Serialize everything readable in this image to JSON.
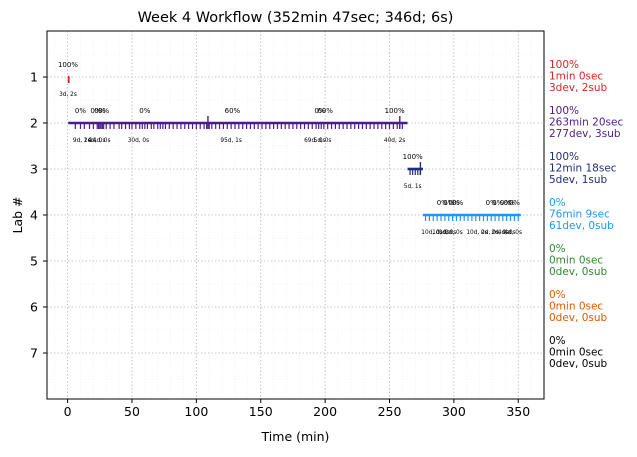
{
  "chart_data": {
    "type": "timeline",
    "title": "Week 4 Workflow (352min 47sec; 346d; 6s)",
    "xlabel": "Time (min)",
    "ylabel": "Lab #",
    "xlim": [
      -16,
      370
    ],
    "ylim": [
      8,
      0
    ],
    "x_ticks": [
      "0",
      "50",
      "100",
      "150",
      "200",
      "250",
      "300",
      "350"
    ],
    "x_tick_values": [
      0,
      50,
      100,
      150,
      200,
      250,
      300,
      350
    ],
    "y_ticks": [
      "1",
      "2",
      "3",
      "4",
      "5",
      "6",
      "7"
    ],
    "y_tick_values": [
      1,
      2,
      3,
      4,
      5,
      6,
      7
    ],
    "grid": true,
    "lanes": [
      {
        "lab": 1,
        "color": "#d62728",
        "start": 0.3,
        "end": 1.3,
        "ticks": [
          0.6,
          0.9,
          1.1
        ],
        "progress": [
          {
            "x": 0.3,
            "label": "100%"
          }
        ],
        "events": [
          {
            "x": 0.3,
            "label": "3d, 2s"
          }
        ],
        "summary": [
          "100%",
          "1min 0sec",
          "3dev, 2sub"
        ]
      },
      {
        "lab": 2,
        "color": "#4b1c8c",
        "start": 0.5,
        "end": 264,
        "ticks": [
          6,
          10,
          13,
          17,
          20,
          23,
          24,
          25,
          26,
          27,
          28,
          30,
          33,
          36,
          40,
          42,
          45,
          48,
          50,
          53,
          56,
          58,
          60,
          62,
          65,
          67,
          70,
          72,
          74,
          76,
          79,
          82,
          85,
          88,
          91,
          94,
          97,
          100,
          103,
          106,
          108,
          110,
          112,
          115,
          118,
          121,
          124,
          127,
          130,
          133,
          136,
          139,
          142,
          145,
          148,
          151,
          154,
          157,
          160,
          163,
          166,
          169,
          172,
          175,
          178,
          181,
          184,
          187,
          190,
          193,
          195,
          197,
          199,
          202,
          205,
          208,
          211,
          214,
          217,
          220,
          223,
          226,
          229,
          232,
          235,
          238,
          241,
          244,
          247,
          250,
          253,
          256,
          258,
          260
        ],
        "major_ticks": [
          109,
          258
        ],
        "progress": [
          {
            "x": 10,
            "label": "0%"
          },
          {
            "x": 22,
            "label": "0%"
          },
          {
            "x": 25,
            "label": "0%"
          },
          {
            "x": 28,
            "label": "0%"
          },
          {
            "x": 60,
            "label": "0%"
          },
          {
            "x": 128,
            "label": "60%"
          },
          {
            "x": 196,
            "label": "0%"
          },
          {
            "x": 200,
            "label": "60%"
          },
          {
            "x": 254,
            "label": "100%"
          }
        ],
        "events": [
          {
            "x": 11,
            "label": "9d, 2s"
          },
          {
            "x": 21,
            "label": "14d, 0s"
          },
          {
            "x": 25,
            "label": "14d, 0s"
          },
          {
            "x": 55,
            "label": "30d, 0s"
          },
          {
            "x": 127,
            "label": "95d, 1s"
          },
          {
            "x": 192,
            "label": "69d, 0s"
          },
          {
            "x": 198,
            "label": "5d, 0s"
          },
          {
            "x": 254,
            "label": "40d, 2s"
          }
        ],
        "summary": [
          "100%",
          "263min 20sec",
          "277dev, 3sub"
        ]
      },
      {
        "lab": 3,
        "color": "#1f2d7a",
        "start": 264,
        "end": 276,
        "ticks": [
          266,
          268,
          270,
          272,
          274
        ],
        "major_ticks": [
          274
        ],
        "progress": [
          {
            "x": 268,
            "label": "100%"
          }
        ],
        "events": [
          {
            "x": 268,
            "label": "5d, 1s"
          }
        ],
        "summary": [
          "100%",
          "12min 18sec",
          "5dev, 1sub"
        ]
      },
      {
        "lab": 4,
        "color": "#2196f3",
        "start": 276,
        "end": 352,
        "ticks": [
          278,
          281,
          284,
          287,
          290,
          293,
          296,
          299,
          302,
          305,
          308,
          311,
          314,
          317,
          320,
          323,
          326,
          329,
          332,
          335,
          338,
          341,
          344,
          347,
          350
        ],
        "progress": [
          {
            "x": 291,
            "label": "0%"
          },
          {
            "x": 296,
            "label": "0%"
          },
          {
            "x": 300,
            "label": "0%"
          },
          {
            "x": 303,
            "label": "0%"
          },
          {
            "x": 329,
            "label": "0%"
          },
          {
            "x": 334,
            "label": "0%"
          },
          {
            "x": 340,
            "label": "0%"
          },
          {
            "x": 343,
            "label": "0%"
          },
          {
            "x": 347,
            "label": "0%"
          }
        ],
        "events": [
          {
            "x": 283,
            "label": "10d, 0s"
          },
          {
            "x": 290,
            "label": "1d, 0s"
          },
          {
            "x": 295,
            "label": "0d, 0s"
          },
          {
            "x": 300,
            "label": "0d, 0s"
          },
          {
            "x": 318,
            "label": "10d, 0s"
          },
          {
            "x": 328,
            "label": "2d, 0s"
          },
          {
            "x": 336,
            "label": "2d, 0s"
          },
          {
            "x": 341,
            "label": "4d, 0s"
          },
          {
            "x": 346,
            "label": "4d, 0s"
          }
        ],
        "summary": [
          "0%",
          "76min 9sec",
          "61dev, 0sub"
        ]
      },
      {
        "lab": 5,
        "color": "#2e8b2e",
        "summary": [
          "0%",
          "0min 0sec",
          "0dev, 0sub"
        ]
      },
      {
        "lab": 6,
        "color": "#e05a00",
        "summary": [
          "0%",
          "0min 0sec",
          "0dev, 0sub"
        ]
      },
      {
        "lab": 7,
        "color": "#000000",
        "summary": [
          "0%",
          "0min 0sec",
          "0dev, 0sub"
        ]
      }
    ]
  }
}
